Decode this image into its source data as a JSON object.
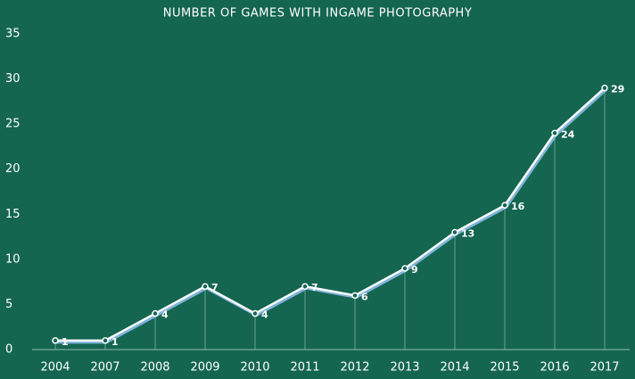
{
  "chart_data": {
    "type": "line",
    "title": "NUMBER OF GAMES WITH INGAME PHOTOGRAPHY",
    "categories": [
      "2004",
      "2007",
      "2008",
      "2009",
      "2010",
      "2011",
      "2012",
      "2013",
      "2014",
      "2015",
      "2016",
      "2017"
    ],
    "values": [
      1,
      1,
      4,
      7,
      4,
      7,
      6,
      9,
      13,
      16,
      24,
      29
    ],
    "color": "#ffffff",
    "ylim": [
      0,
      35
    ],
    "yticks": [
      0,
      5,
      10,
      15,
      20,
      25,
      30,
      35
    ]
  }
}
